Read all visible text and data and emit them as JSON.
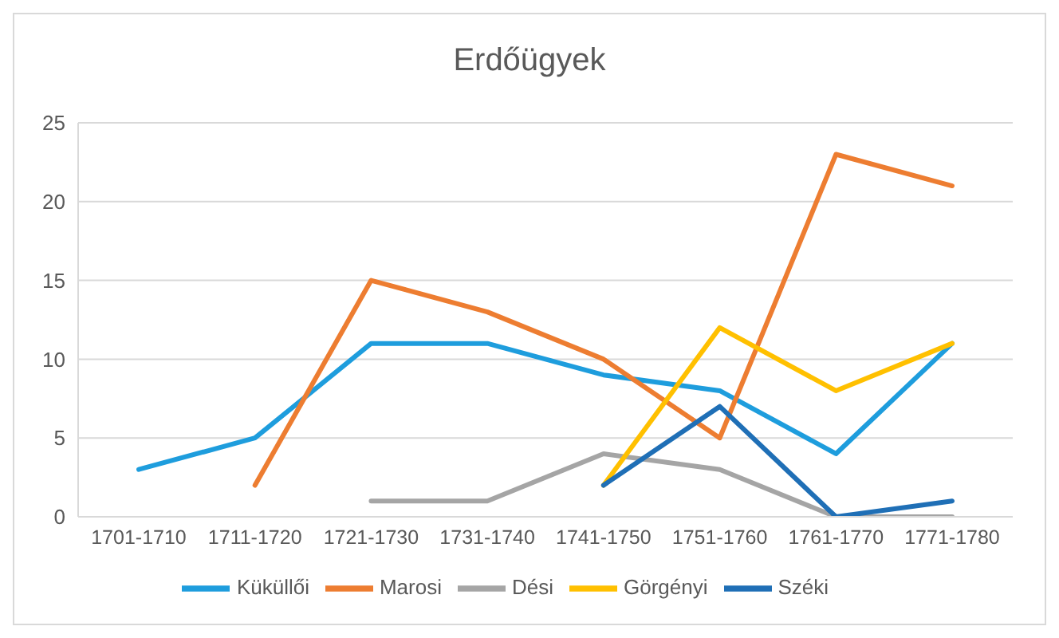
{
  "chart_data": {
    "type": "line",
    "title": "Erdőügyek",
    "categories": [
      "1701-1710",
      "1711-1720",
      "1721-1730",
      "1731-1740",
      "1741-1750",
      "1751-1760",
      "1761-1770",
      "1771-1780"
    ],
    "series": [
      {
        "name": "Küküllői",
        "color": "#1e9ddd",
        "values": [
          3,
          5,
          11,
          11,
          9,
          8,
          4,
          11
        ]
      },
      {
        "name": "Marosi",
        "color": "#ed7d31",
        "values": [
          null,
          2,
          15,
          13,
          10,
          5,
          23,
          21
        ]
      },
      {
        "name": "Dési",
        "color": "#a5a5a5",
        "values": [
          null,
          null,
          1,
          1,
          4,
          3,
          0,
          0
        ]
      },
      {
        "name": "Görgényi",
        "color": "#ffc000",
        "values": [
          null,
          null,
          null,
          null,
          2,
          12,
          8,
          11
        ]
      },
      {
        "name": "Széki",
        "color": "#1f6fb6",
        "values": [
          null,
          null,
          null,
          null,
          2,
          7,
          0,
          1
        ]
      }
    ],
    "ylim": [
      0,
      25
    ],
    "yticks": [
      0,
      5,
      10,
      15,
      20,
      25
    ],
    "grid": "y",
    "legend": "bottom",
    "marker": "none",
    "line_style": "solid"
  }
}
